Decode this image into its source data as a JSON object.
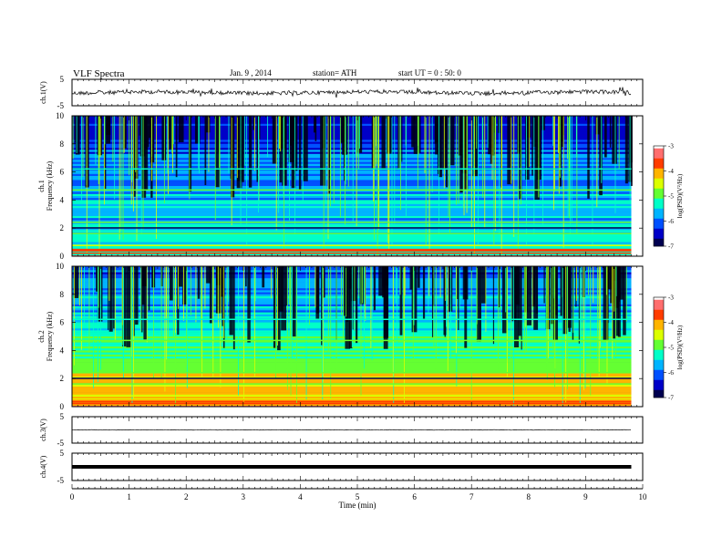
{
  "header": {
    "title": "VLF Spectra",
    "date": "Jan. 9 , 2014",
    "station": "station= ATH",
    "start_ut": "start UT = 0 : 50: 0"
  },
  "colors": {
    "colormap": [
      "#000050",
      "#0000c8",
      "#0050ff",
      "#00b4ff",
      "#00ffc8",
      "#64ff32",
      "#dcff00",
      "#ffb400",
      "#ff3c00",
      "#ff6e6e",
      "#ffffff"
    ]
  },
  "chart_data": [
    {
      "type": "line",
      "name": "ch1-waveform",
      "ylabel": "ch.1(V)",
      "ylim": [
        -5,
        5
      ],
      "yticks": [
        "5",
        "-5"
      ],
      "level": 0,
      "noise": "high"
    },
    {
      "type": "heatmap",
      "name": "ch1-spectrogram",
      "ylabel": "ch.1 Frequency (kHz)",
      "ylim": [
        0,
        10
      ],
      "yticks": [
        "0",
        "2",
        "4",
        "6",
        "8",
        "10"
      ],
      "colorbar": {
        "label": "log(PSD)(V²/Hz)",
        "range": [
          -7,
          -3
        ],
        "ticks": [
          "-3",
          "-4",
          "-5",
          "-6",
          "-7"
        ]
      }
    },
    {
      "type": "heatmap",
      "name": "ch2-spectrogram",
      "ylabel": "ch.2 Frequency (kHz)",
      "ylim": [
        0,
        10
      ],
      "yticks": [
        "0",
        "2",
        "4",
        "6",
        "8",
        "10"
      ],
      "colorbar": {
        "label": "log(PSD)(V²/Hz)",
        "range": [
          -7,
          -3
        ],
        "ticks": [
          "-3",
          "-4",
          "-5",
          "-6",
          "-7"
        ]
      }
    },
    {
      "type": "line",
      "name": "ch3-waveform",
      "ylabel": "ch.3(V)",
      "ylim": [
        -5,
        5
      ],
      "yticks": [
        "5",
        "-5"
      ],
      "level": 0,
      "noise": "low"
    },
    {
      "type": "line",
      "name": "ch4-waveform",
      "ylabel": "ch.4(V)",
      "ylim": [
        -5,
        5
      ],
      "yticks": [
        "5",
        "-5"
      ],
      "level": 0,
      "noise": "band"
    }
  ],
  "x_axis": {
    "label": "Time (min)",
    "range": [
      0,
      10
    ],
    "data_end": 9.8,
    "ticks": [
      "0",
      "1",
      "2",
      "3",
      "4",
      "5",
      "6",
      "7",
      "8",
      "9",
      "10"
    ]
  }
}
